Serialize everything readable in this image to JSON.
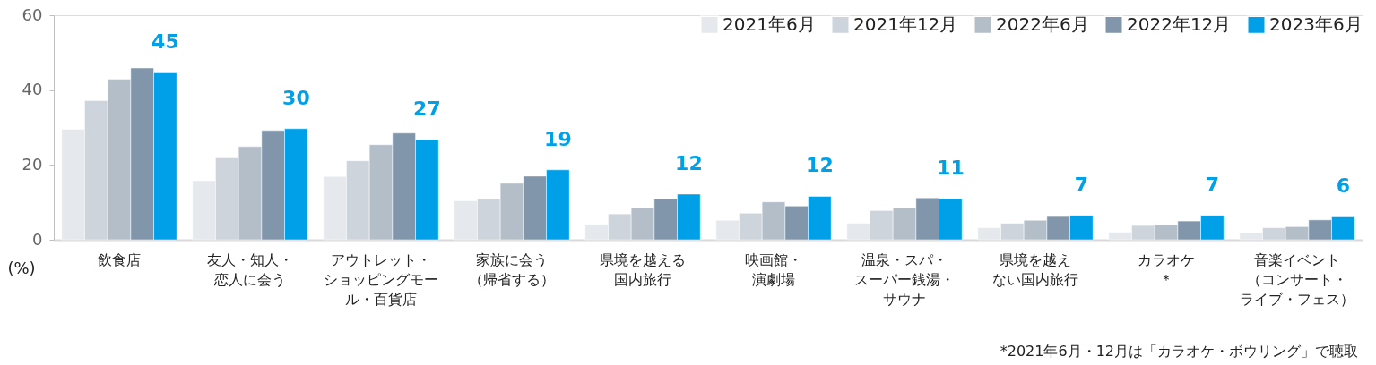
{
  "chart_data": {
    "type": "bar",
    "categories": [
      "飲食店",
      "友人・知人・恋人に会う",
      "アウトレット・ショッピングモール・百貨店",
      "家族に会う（帰省する）",
      "県境を越える国内旅行",
      "映画館・演劇場",
      "温泉・スパ・スーパー銭湯・サウナ",
      "県境を越えない国内旅行",
      "カラオケ＊",
      "音楽イベント（コンサート・ライブ・フェス）"
    ],
    "series": [
      {
        "name": "2021年6月",
        "color": "#e5e8ed",
        "values": [
          29.5,
          15.8,
          16.9,
          10.4,
          4.1,
          5.2,
          4.4,
          3.2,
          2.0,
          1.8
        ]
      },
      {
        "name": "2021年12月",
        "color": "#cdd4dc",
        "values": [
          37.2,
          21.9,
          21.1,
          10.9,
          6.9,
          7.1,
          7.8,
          4.4,
          3.8,
          3.2
        ]
      },
      {
        "name": "2022年6月",
        "color": "#b4bec9",
        "values": [
          42.9,
          24.9,
          25.4,
          15.1,
          8.6,
          10.1,
          8.5,
          5.2,
          4.0,
          3.5
        ]
      },
      {
        "name": "2022年12月",
        "color": "#8196aa",
        "values": [
          45.9,
          29.2,
          28.5,
          17.0,
          10.9,
          9.0,
          11.2,
          6.2,
          5.0,
          5.3
        ]
      },
      {
        "name": "2023年6月",
        "color": "#00a0e9",
        "values": [
          44.6,
          29.7,
          26.8,
          18.7,
          12.2,
          11.6,
          11.0,
          6.5,
          6.5,
          6.1
        ],
        "value_labels": [
          "45",
          "30",
          "27",
          "19",
          "12",
          "12",
          "11",
          "7",
          "7",
          "6"
        ]
      }
    ],
    "ylim": [
      0,
      60
    ],
    "yticks": [
      0,
      20,
      40,
      60
    ],
    "grid": false,
    "legend": "top right",
    "annotations": [
      "(%)",
      "*2021年6月・12月は「カラオケ・ボウリング」で聴取"
    ]
  }
}
